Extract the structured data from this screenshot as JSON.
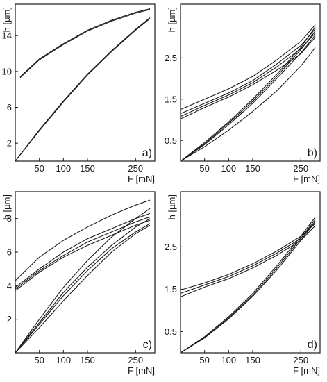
{
  "chart_data": [
    {
      "type": "line",
      "panel_label": "a)",
      "xlabel": "F [mN]",
      "ylabel": "h [µm]",
      "xticks": [
        50,
        100,
        150,
        250
      ],
      "yticks": [
        2,
        6,
        10,
        14
      ],
      "xlim": [
        0,
        290
      ],
      "ylim": [
        0,
        17.5
      ],
      "series": [
        {
          "x": [
            0,
            50,
            100,
            150,
            200,
            250,
            280
          ],
          "y": [
            0,
            3.4,
            6.6,
            9.6,
            12.2,
            14.6,
            15.9
          ]
        },
        {
          "x": [
            280,
            250,
            200,
            150,
            100,
            50,
            10
          ],
          "y": [
            17.0,
            16.6,
            15.7,
            14.6,
            13.1,
            11.4,
            9.4
          ]
        },
        {
          "x": [
            0,
            50,
            100,
            150,
            200,
            250,
            280
          ],
          "y": [
            0,
            3.5,
            6.7,
            9.7,
            12.3,
            14.7,
            16.0
          ]
        },
        {
          "x": [
            280,
            250,
            200,
            150,
            100,
            50,
            10
          ],
          "y": [
            16.9,
            16.5,
            15.6,
            14.5,
            13.0,
            11.3,
            9.3
          ]
        }
      ]
    },
    {
      "type": "line",
      "panel_label": "b)",
      "xlabel": "F [mN]",
      "ylabel": "h [µm]",
      "xticks": [
        50,
        100,
        150,
        250
      ],
      "yticks": [
        0.5,
        1.5,
        2.5
      ],
      "xlim": [
        0,
        290
      ],
      "ylim": [
        0,
        3.8
      ],
      "series": [
        {
          "x": [
            0,
            50,
            100,
            150,
            200,
            250,
            280
          ],
          "y": [
            0,
            0.45,
            0.95,
            1.5,
            2.1,
            2.75,
            3.25
          ]
        },
        {
          "x": [
            280,
            250,
            200,
            150,
            100,
            50,
            0
          ],
          "y": [
            3.3,
            2.9,
            2.45,
            2.05,
            1.75,
            1.5,
            1.25
          ]
        },
        {
          "x": [
            0,
            50,
            100,
            150,
            200,
            250,
            280
          ],
          "y": [
            0,
            0.42,
            0.92,
            1.45,
            2.05,
            2.7,
            3.15
          ]
        },
        {
          "x": [
            280,
            250,
            200,
            150,
            100,
            50,
            0
          ],
          "y": [
            3.2,
            2.8,
            2.35,
            1.95,
            1.65,
            1.4,
            1.15
          ]
        },
        {
          "x": [
            0,
            50,
            100,
            150,
            200,
            250,
            280
          ],
          "y": [
            0,
            0.4,
            0.88,
            1.4,
            2.0,
            2.62,
            3.05
          ]
        },
        {
          "x": [
            280,
            250,
            200,
            150,
            100,
            50,
            0
          ],
          "y": [
            3.1,
            2.72,
            2.28,
            1.9,
            1.6,
            1.35,
            1.08
          ]
        },
        {
          "x": [
            0,
            50,
            100,
            150,
            200,
            250,
            280
          ],
          "y": [
            0,
            0.35,
            0.75,
            1.2,
            1.7,
            2.3,
            2.75
          ]
        },
        {
          "x": [
            280,
            250,
            200,
            150,
            100,
            50,
            0
          ],
          "y": [
            3.0,
            2.6,
            2.2,
            1.85,
            1.55,
            1.3,
            1.02
          ]
        }
      ]
    },
    {
      "type": "line",
      "panel_label": "c)",
      "xlabel": "F [mN]",
      "ylabel": "h [µm]",
      "xticks": [
        50,
        100,
        150,
        250
      ],
      "yticks": [
        2,
        4,
        6,
        8
      ],
      "xlim": [
        0,
        290
      ],
      "ylim": [
        0,
        9.6
      ],
      "series": [
        {
          "x": [
            0,
            50,
            100,
            150,
            200,
            250,
            280
          ],
          "y": [
            0,
            2.0,
            3.9,
            5.5,
            6.9,
            8.0,
            8.6
          ]
        },
        {
          "x": [
            280,
            250,
            200,
            150,
            100,
            50,
            0
          ],
          "y": [
            9.1,
            8.8,
            8.2,
            7.5,
            6.7,
            5.7,
            4.3
          ]
        },
        {
          "x": [
            0,
            50,
            100,
            150,
            200,
            250,
            280
          ],
          "y": [
            0,
            1.8,
            3.6,
            5.1,
            6.4,
            7.5,
            8.0
          ]
        },
        {
          "x": [
            280,
            250,
            200,
            150,
            100,
            50,
            0
          ],
          "y": [
            8.3,
            8.0,
            7.4,
            6.8,
            6.0,
            5.0,
            3.9
          ]
        },
        {
          "x": [
            0,
            50,
            100,
            150,
            200,
            250,
            280
          ],
          "y": [
            0,
            1.7,
            3.4,
            4.9,
            6.2,
            7.2,
            7.7
          ]
        },
        {
          "x": [
            280,
            250,
            200,
            150,
            100,
            50,
            0
          ],
          "y": [
            8.1,
            7.8,
            7.2,
            6.6,
            5.8,
            4.9,
            3.8
          ]
        },
        {
          "x": [
            0,
            50,
            100,
            150,
            200,
            250,
            280
          ],
          "y": [
            0,
            1.5,
            3.1,
            4.6,
            6.0,
            7.1,
            7.6
          ]
        },
        {
          "x": [
            280,
            250,
            200,
            150,
            100,
            50,
            0
          ],
          "y": [
            7.9,
            7.6,
            7.0,
            6.4,
            5.7,
            4.8,
            3.7
          ]
        }
      ]
    },
    {
      "type": "line",
      "panel_label": "d)",
      "xlabel": "F [mN]",
      "ylabel": "h [µm]",
      "xticks": [
        50,
        100,
        150,
        250
      ],
      "yticks": [
        0.5,
        1.5,
        2.5
      ],
      "xlim": [
        0,
        290
      ],
      "ylim": [
        0,
        3.8
      ],
      "series": [
        {
          "x": [
            0,
            50,
            100,
            150,
            200,
            250,
            280
          ],
          "y": [
            0,
            0.38,
            0.85,
            1.4,
            2.05,
            2.75,
            3.2
          ]
        },
        {
          "x": [
            280,
            250,
            200,
            150,
            100,
            50,
            0
          ],
          "y": [
            3.1,
            2.7,
            2.35,
            2.05,
            1.8,
            1.6,
            1.4
          ]
        },
        {
          "x": [
            0,
            50,
            100,
            150,
            200,
            250,
            280
          ],
          "y": [
            0,
            0.36,
            0.82,
            1.36,
            2.0,
            2.7,
            3.15
          ]
        },
        {
          "x": [
            280,
            250,
            200,
            150,
            100,
            50,
            0
          ],
          "y": [
            3.0,
            2.65,
            2.3,
            2.0,
            1.75,
            1.55,
            1.32
          ]
        },
        {
          "x": [
            0,
            50,
            100,
            150,
            200,
            250,
            280
          ],
          "y": [
            0,
            0.35,
            0.8,
            1.33,
            1.95,
            2.65,
            3.1
          ]
        },
        {
          "x": [
            280,
            250,
            200,
            150,
            100,
            50,
            0
          ],
          "y": [
            3.05,
            2.75,
            2.4,
            2.1,
            1.85,
            1.65,
            1.48
          ]
        }
      ]
    }
  ]
}
